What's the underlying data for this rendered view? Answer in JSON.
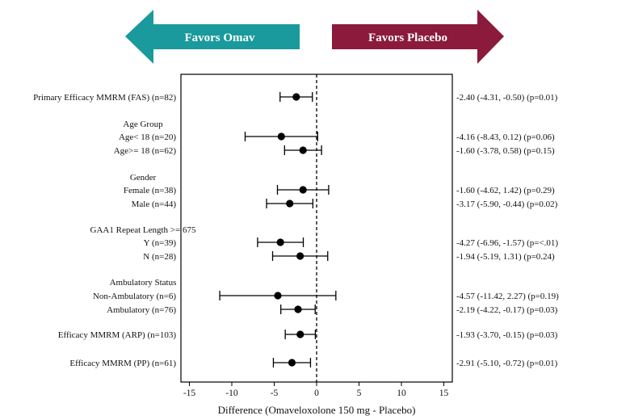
{
  "colors": {
    "left_arrow": "#1a9a9c",
    "right_arrow": "#8b1a3c",
    "marker": "#000000"
  },
  "arrows": {
    "left_label": "Favors Omav",
    "right_label": "Favors Placebo"
  },
  "chart_data": {
    "type": "forest",
    "xlabel": "Difference (Omaveloxolone 150 mg - Placebo)",
    "xlim": [
      -16,
      16
    ],
    "xticks": [
      -15,
      -10,
      -5,
      0,
      5,
      10,
      15
    ],
    "reference_line": 0,
    "rows": [
      {
        "label": "Primary Efficacy MMRM (FAS) (n=82)",
        "est": -2.4,
        "lo": -4.31,
        "hi": -0.5,
        "result": "-2.40 (-4.31, -0.50) (p=0.01)"
      },
      {
        "label": "Age Group",
        "header": true
      },
      {
        "label": "Age< 18 (n=20)",
        "est": -4.16,
        "lo": -8.43,
        "hi": 0.12,
        "result": "-4.16 (-8.43, 0.12) (p=0.06)"
      },
      {
        "label": "Age>= 18 (n=62)",
        "est": -1.6,
        "lo": -3.78,
        "hi": 0.58,
        "result": "-1.60 (-3.78, 0.58) (p=0.15)"
      },
      {
        "label": "Gender",
        "header": true
      },
      {
        "label": "Female (n=38)",
        "est": -1.6,
        "lo": -4.62,
        "hi": 1.42,
        "result": "-1.60 (-4.62, 1.42) (p=0.29)"
      },
      {
        "label": "Male (n=44)",
        "est": -3.17,
        "lo": -5.9,
        "hi": -0.44,
        "result": "-3.17 (-5.90, -0.44) (p=0.02)"
      },
      {
        "label": "GAA1 Repeat Length >= 675",
        "header": true
      },
      {
        "label": "Y (n=39)",
        "est": -4.27,
        "lo": -6.96,
        "hi": -1.57,
        "result": "-4.27 (-6.96, -1.57) (p=<.01)"
      },
      {
        "label": "N (n=28)",
        "est": -1.94,
        "lo": -5.19,
        "hi": 1.31,
        "result": "-1.94 (-5.19, 1.31) (p=0.24)"
      },
      {
        "label": "Ambulatory Status",
        "header": true
      },
      {
        "label": "Non-Ambulatory (n=6)",
        "est": -4.57,
        "lo": -11.42,
        "hi": 2.27,
        "result": "-4.57 (-11.42, 2.27) (p=0.19)"
      },
      {
        "label": "Ambulatory (n=76)",
        "est": -2.19,
        "lo": -4.22,
        "hi": -0.17,
        "result": "-2.19 (-4.22, -0.17) (p=0.03)"
      },
      {
        "label": "Efficacy MMRM (ARP) (n=103)",
        "est": -1.93,
        "lo": -3.7,
        "hi": -0.15,
        "result": "-1.93 (-3.70, -0.15) (p=0.03)"
      },
      {
        "label": "Efficacy MMRM (PP) (n=61)",
        "est": -2.91,
        "lo": -5.1,
        "hi": -0.72,
        "result": "-2.91 (-5.10, -0.72) (p=0.01)"
      }
    ]
  }
}
